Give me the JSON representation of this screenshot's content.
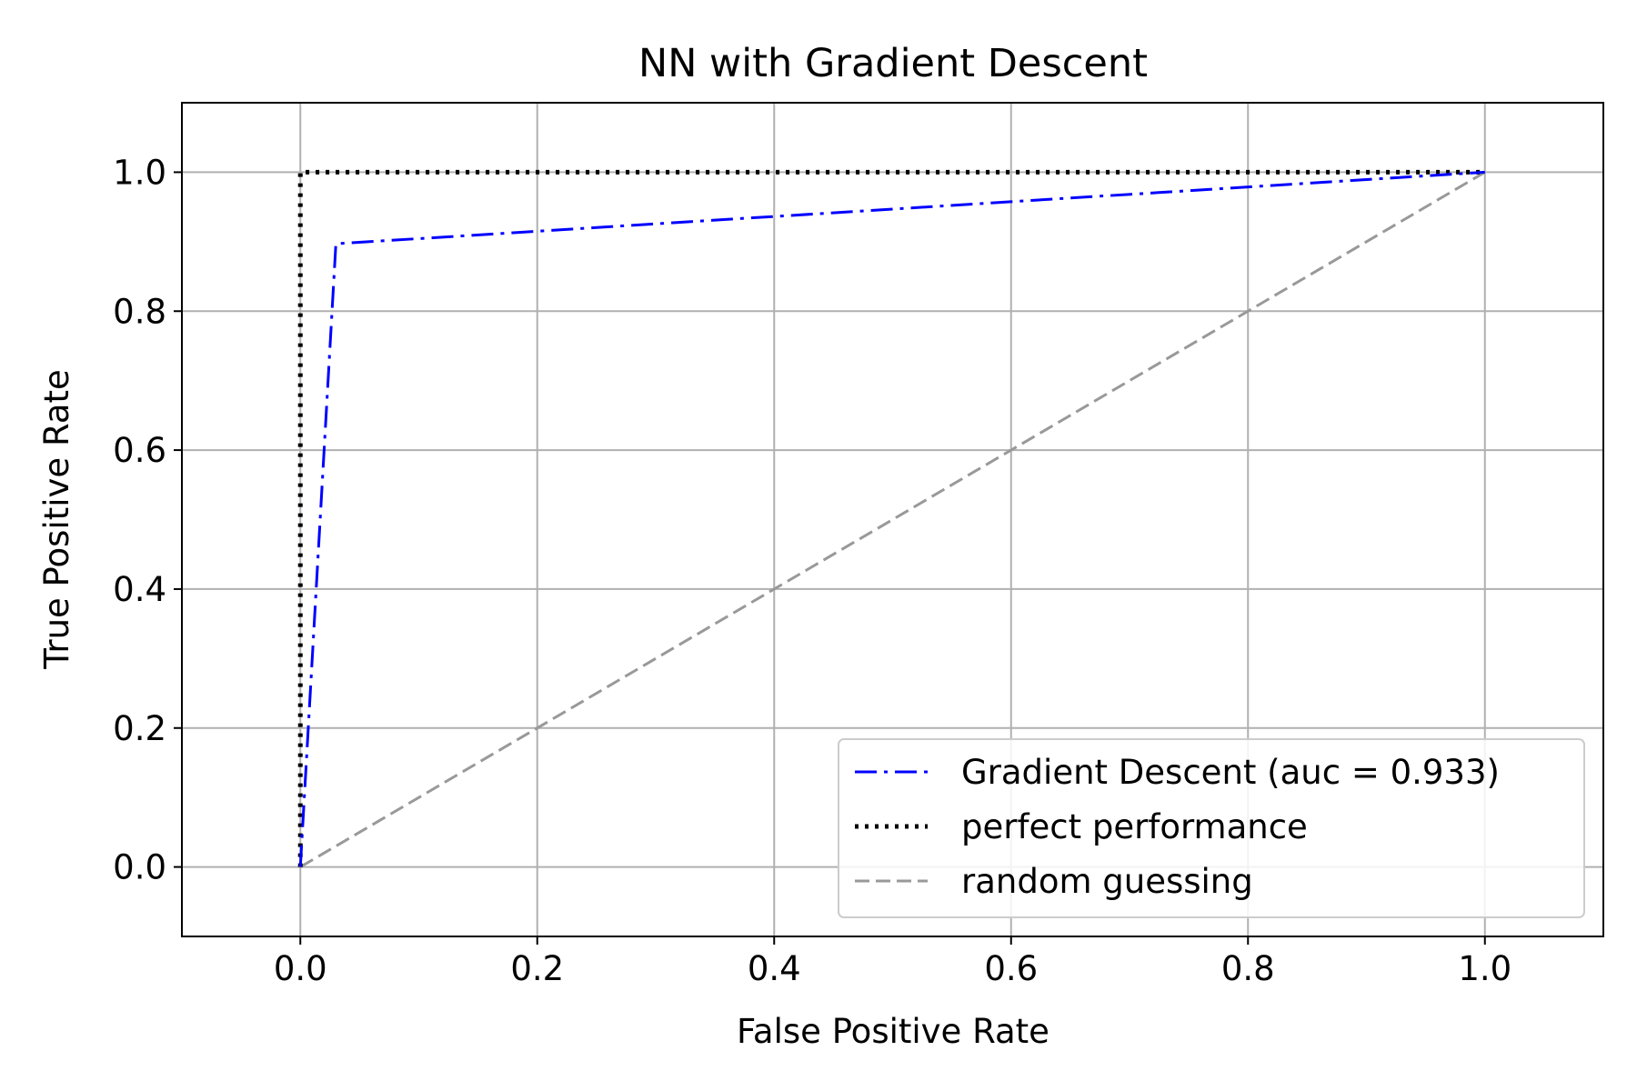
{
  "chart_data": {
    "type": "line",
    "title": "NN with Gradient Descent",
    "xlabel": "False Positive Rate",
    "ylabel": "True Positive Rate",
    "xlim": [
      -0.1,
      1.1
    ],
    "ylim": [
      -0.1,
      1.1
    ],
    "xticks": [
      0.0,
      0.2,
      0.4,
      0.6,
      0.8,
      1.0
    ],
    "yticks": [
      0.0,
      0.2,
      0.4,
      0.6,
      0.8,
      1.0
    ],
    "xtick_labels": [
      "0.0",
      "0.2",
      "0.4",
      "0.6",
      "0.8",
      "1.0"
    ],
    "ytick_labels": [
      "0.0",
      "0.2",
      "0.4",
      "0.6",
      "0.8",
      "1.0"
    ],
    "grid": true,
    "legend_position": "lower-right",
    "series": [
      {
        "name": "Gradient Descent (auc = 0.933)",
        "color": "#0000ff",
        "style": "dashdot",
        "x": [
          0.0,
          0.03,
          1.0
        ],
        "y": [
          0.0,
          0.897,
          1.0
        ]
      },
      {
        "name": "perfect performance",
        "color": "#000000",
        "style": "dotted",
        "x": [
          0.0,
          0.0,
          1.0
        ],
        "y": [
          0.0,
          1.0,
          1.0
        ]
      },
      {
        "name": "random guessing",
        "color": "#999999",
        "style": "dashed",
        "x": [
          0.0,
          1.0
        ],
        "y": [
          0.0,
          1.0
        ]
      }
    ]
  }
}
